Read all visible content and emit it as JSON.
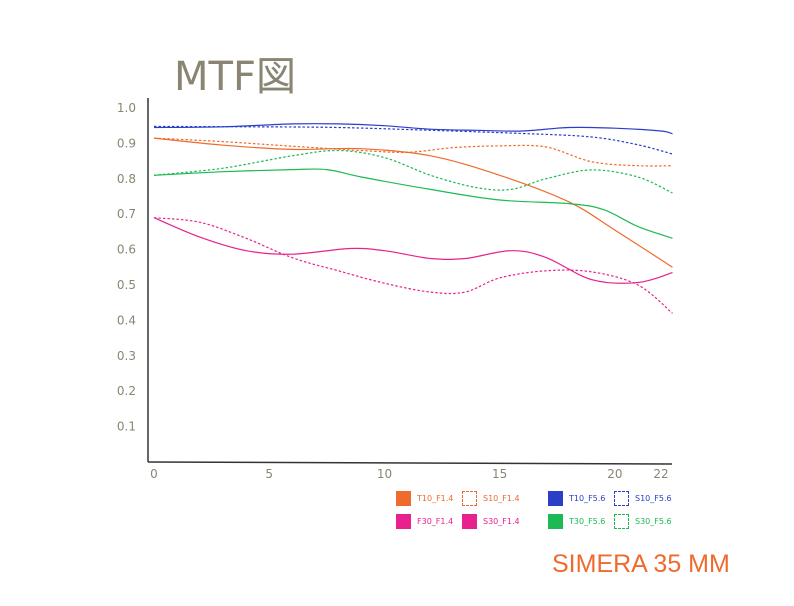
{
  "chart_data": {
    "type": "line",
    "title": "MTF図",
    "footer": "SIMERA 35 MM",
    "xlim": [
      0,
      22.5
    ],
    "ylim": [
      0,
      1.0
    ],
    "x_ticks": [
      0,
      5,
      10,
      15,
      20,
      22
    ],
    "y_ticks": [
      0.1,
      0.2,
      0.3,
      0.4,
      0.5,
      0.6,
      0.7,
      0.8,
      0.9,
      1.0
    ],
    "series": [
      {
        "name": "T10_F1.4",
        "color": "#ee6b2d",
        "style": "solid",
        "x": [
          0,
          3,
          6,
          9,
          12,
          15,
          18,
          20,
          22.5
        ],
        "y": [
          0.915,
          0.895,
          0.883,
          0.885,
          0.865,
          0.81,
          0.735,
          0.655,
          0.55
        ]
      },
      {
        "name": "S10_F1.4",
        "color": "#ee6b2d",
        "style": "dashed",
        "x": [
          0,
          3,
          6,
          9,
          11,
          13,
          15,
          17,
          19,
          21,
          22.5
        ],
        "y": [
          0.915,
          0.905,
          0.892,
          0.88,
          0.875,
          0.888,
          0.893,
          0.89,
          0.848,
          0.837,
          0.837
        ]
      },
      {
        "name": "F30_F1.4",
        "color": "#e8218c",
        "style": "solid",
        "x": [
          0,
          2,
          4,
          6,
          8.5,
          10,
          12,
          13.5,
          15.5,
          17,
          19,
          21,
          22.5
        ],
        "y": [
          0.69,
          0.635,
          0.597,
          0.587,
          0.603,
          0.597,
          0.575,
          0.575,
          0.597,
          0.578,
          0.515,
          0.507,
          0.535
        ]
      },
      {
        "name": "S30_F1.4",
        "color": "#e8218c",
        "style": "dashed",
        "x": [
          0,
          2,
          4,
          6,
          8,
          10,
          12,
          13.5,
          15,
          17,
          19,
          21,
          22.5
        ],
        "y": [
          0.69,
          0.677,
          0.632,
          0.577,
          0.54,
          0.505,
          0.48,
          0.48,
          0.52,
          0.54,
          0.537,
          0.5,
          0.42
        ]
      },
      {
        "name": "T10_F5.6",
        "color": "#2a3ec8",
        "style": "solid",
        "x": [
          0,
          3,
          6,
          8,
          10,
          12,
          14,
          16,
          18,
          20,
          22,
          22.5
        ],
        "y": [
          0.945,
          0.947,
          0.955,
          0.955,
          0.95,
          0.94,
          0.937,
          0.935,
          0.945,
          0.943,
          0.935,
          0.927
        ]
      },
      {
        "name": "S10_F5.6",
        "color": "#2a3ec8",
        "style": "dashed",
        "x": [
          0,
          4,
          8,
          12,
          16,
          19,
          21,
          22.5
        ],
        "y": [
          0.948,
          0.947,
          0.945,
          0.937,
          0.928,
          0.918,
          0.896,
          0.87
        ]
      },
      {
        "name": "T30_F5.6",
        "color": "#1db954",
        "style": "solid",
        "x": [
          0,
          3,
          6,
          7.5,
          9,
          12,
          15,
          18,
          19.5,
          21,
          22.5
        ],
        "y": [
          0.81,
          0.82,
          0.826,
          0.826,
          0.805,
          0.77,
          0.74,
          0.73,
          0.713,
          0.665,
          0.632
        ]
      },
      {
        "name": "S30_F5.6",
        "color": "#1db954",
        "style": "dashed",
        "x": [
          0,
          3,
          6,
          8,
          10,
          12,
          14,
          15.5,
          17,
          19,
          21,
          22.5
        ],
        "y": [
          0.81,
          0.83,
          0.865,
          0.88,
          0.86,
          0.81,
          0.775,
          0.77,
          0.8,
          0.825,
          0.805,
          0.76
        ]
      }
    ],
    "legend": [
      {
        "label": "T10_F1.4",
        "color": "#ee6b2d",
        "style": "solid"
      },
      {
        "label": "S10_F1.4",
        "color": "#ee6b2d",
        "style": "dashed"
      },
      {
        "label": "T10_F5.6",
        "color": "#2a3ec8",
        "style": "solid"
      },
      {
        "label": "S10_F5.6",
        "color": "#2a3ec8",
        "style": "dashed"
      },
      {
        "label": "F30_F1.4",
        "color": "#e8218c",
        "style": "solid"
      },
      {
        "label": "S30_F1.4",
        "color": "#e8218c",
        "style": "dashed"
      },
      {
        "label": "T30_F5.6",
        "color": "#1db954",
        "style": "solid"
      },
      {
        "label": "S30_F5.6",
        "color": "#1db954",
        "style": "dashed"
      }
    ]
  }
}
